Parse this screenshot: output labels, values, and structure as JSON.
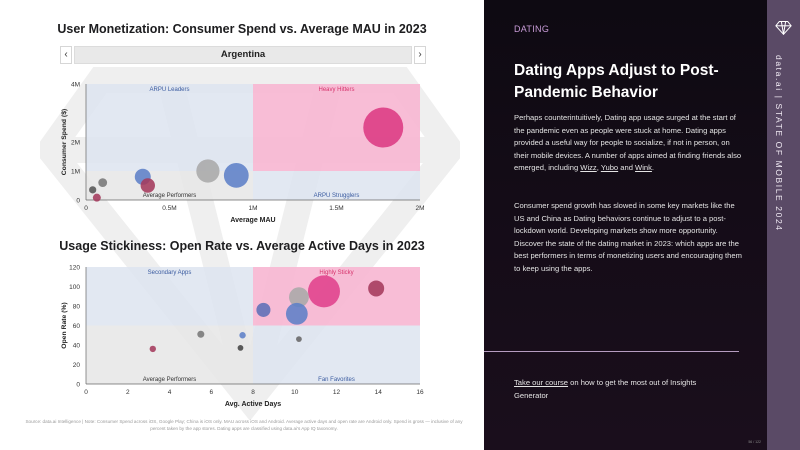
{
  "left_panel": {
    "country_selector": {
      "value": "Argentina",
      "prev_icon": "‹",
      "next_icon": "›"
    },
    "footnote": "Source: data.ai Intelligence | Note: Consumer Spend across iOS, Google Play; China is iOS only. MAU across iOS and Android. Average active days and open rate are Android only. Spend is gross — inclusive of any percent taken by the app stores. Dating apps are classified using data.ai's App IQ taxonomy."
  },
  "chart_data": [
    {
      "type": "scatter",
      "title": "User Monetization: Consumer Spend vs. Average MAU in 2023",
      "xlabel": "Average MAU",
      "ylabel": "Consumer Spend ($)",
      "xlim": [
        0,
        2000000
      ],
      "ylim": [
        0,
        4000000
      ],
      "x_ticks": [
        {
          "v": 0,
          "label": "0"
        },
        {
          "v": 500000,
          "label": "0.5M"
        },
        {
          "v": 1000000,
          "label": "1M"
        },
        {
          "v": 1500000,
          "label": "1.5M"
        },
        {
          "v": 2000000,
          "label": "2M"
        }
      ],
      "y_ticks": [
        {
          "v": 0,
          "label": "0"
        },
        {
          "v": 1000000,
          "label": "1M"
        },
        {
          "v": 2000000,
          "label": "2M"
        },
        {
          "v": 4000000,
          "label": "4M"
        }
      ],
      "quadrants": {
        "split_x": 1000000,
        "split_y": 1000000,
        "top_left": "ARPU Leaders",
        "top_right": "Heavy Hitters",
        "bottom_left": "Average Performers",
        "bottom_right": "ARPU Strugglers"
      },
      "points": [
        {
          "x": 1780000,
          "y": 2500000,
          "size": 1.0,
          "color": "#dc3a83"
        },
        {
          "x": 730000,
          "y": 1000000,
          "size": 0.58,
          "color": "#a9a9a9"
        },
        {
          "x": 900000,
          "y": 850000,
          "size": 0.62,
          "color": "#5d7fc7"
        },
        {
          "x": 340000,
          "y": 800000,
          "size": 0.4,
          "color": "#5d7fc7"
        },
        {
          "x": 370000,
          "y": 500000,
          "size": 0.36,
          "color": "#a43a5c"
        },
        {
          "x": 100000,
          "y": 600000,
          "size": 0.22,
          "color": "#777777"
        },
        {
          "x": 40000,
          "y": 350000,
          "size": 0.18,
          "color": "#555555"
        },
        {
          "x": 65000,
          "y": 80000,
          "size": 0.2,
          "color": "#a43a5c"
        }
      ]
    },
    {
      "type": "scatter",
      "title": "Usage Stickiness: Open Rate vs. Average Active Days in 2023",
      "xlabel": "Avg. Active Days",
      "ylabel": "Open Rate (%)",
      "xlim": [
        0,
        16
      ],
      "ylim": [
        0,
        120
      ],
      "x_ticks": [
        {
          "v": 0,
          "label": "0"
        },
        {
          "v": 2,
          "label": "2"
        },
        {
          "v": 4,
          "label": "4"
        },
        {
          "v": 6,
          "label": "6"
        },
        {
          "v": 8,
          "label": "8"
        },
        {
          "v": 10,
          "label": "10"
        },
        {
          "v": 12,
          "label": "12"
        },
        {
          "v": 14,
          "label": "14"
        },
        {
          "v": 16,
          "label": "16"
        }
      ],
      "y_ticks": [
        {
          "v": 0,
          "label": "0"
        },
        {
          "v": 20,
          "label": "20"
        },
        {
          "v": 40,
          "label": "40"
        },
        {
          "v": 60,
          "label": "60"
        },
        {
          "v": 80,
          "label": "80"
        },
        {
          "v": 100,
          "label": "100"
        },
        {
          "v": 120,
          "label": "120"
        }
      ],
      "quadrants": {
        "split_x": 8,
        "split_y": 60,
        "top_left": "Secondary Apps",
        "top_right": "Highly Sticky",
        "bottom_left": "Average Performers",
        "bottom_right": "Fan Favorites"
      },
      "points": [
        {
          "x": 11.4,
          "y": 95,
          "size": 1.0,
          "color": "#e0418c"
        },
        {
          "x": 10.2,
          "y": 89,
          "size": 0.62,
          "color": "#a9a9a9"
        },
        {
          "x": 10.1,
          "y": 72,
          "size": 0.68,
          "color": "#5d7fc7"
        },
        {
          "x": 13.9,
          "y": 98,
          "size": 0.5,
          "color": "#a43a5c"
        },
        {
          "x": 8.5,
          "y": 76,
          "size": 0.44,
          "color": "#5d6fb7"
        },
        {
          "x": 5.5,
          "y": 51,
          "size": 0.22,
          "color": "#777777"
        },
        {
          "x": 7.5,
          "y": 50,
          "size": 0.2,
          "color": "#5d7fc7"
        },
        {
          "x": 10.2,
          "y": 46,
          "size": 0.18,
          "color": "#666666"
        },
        {
          "x": 7.4,
          "y": 37,
          "size": 0.18,
          "color": "#444444"
        },
        {
          "x": 3.2,
          "y": 36,
          "size": 0.2,
          "color": "#a43a5c"
        }
      ]
    }
  ],
  "right_panel": {
    "category": "DATING",
    "headline": "Dating Apps Adjust to Post-Pandemic Behavior",
    "body1_before": "Perhaps counterintuitively, Dating app usage surged at the start of the pandemic even as people were stuck at home. Dating apps provided a useful way for people to socialize, if not in person, on their mobile devices. A number of apps aimed at finding friends also emerged, including ",
    "link_wizz": "Wizz",
    "sep1": ", ",
    "link_yubo": "Yubo",
    "sep2": " and ",
    "link_wink": "Wink",
    "body1_end": ".",
    "body2": "Consumer spend growth has slowed in some key markets like the US and China as Dating behaviors continue to adjust to a post-lockdown world. Developing markets show more opportunity. Discover the state of the dating market in 2023: which apps are the best performers in terms of monetizing users and encouraging them to keep using the apps.",
    "course_link": "Take our course",
    "course_rest": " on how to get the most out of Insights Generator",
    "page_number": "56 / 122"
  },
  "side_strip": {
    "logo_icon": "diamond-logo-icon",
    "brand": "data.ai",
    "separator": "|",
    "report": "STATE OF MOBILE 2024"
  },
  "colors": {
    "top_right_quad": "#f7b6d1",
    "top_left_quad": "#dde4f0",
    "bottom_left_quad": "#e6e6e6",
    "bottom_right_quad": "#dde4f0",
    "quad_label_blue": "#3a5ba0",
    "quad_label_pink": "#d6336c",
    "accent_purple": "#c79ad6",
    "side_strip": "#5a4a66"
  }
}
